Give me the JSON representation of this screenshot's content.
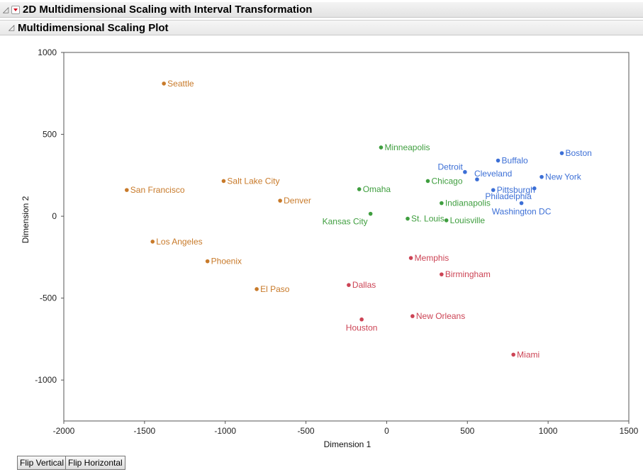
{
  "report": {
    "title": "2D Multidimensional Scaling with Interval Transformation"
  },
  "plot_section": {
    "title": "Multidimensional Scaling Plot"
  },
  "buttons": {
    "flip_vertical": "Flip Vertical",
    "flip_horizontal": "Flip Horizontal"
  },
  "colors": {
    "west": "#c87a2a",
    "central": "#3f9e3f",
    "south": "#cc4455",
    "east": "#3c6fd6"
  },
  "chart_data": {
    "type": "scatter",
    "xlabel": "Dimension 1",
    "ylabel": "Dimension 2",
    "xlim": [
      -2000,
      1500
    ],
    "ylim": [
      -1250,
      1000
    ],
    "x_ticks": [
      -2000,
      -1500,
      -1000,
      -500,
      0,
      500,
      1000,
      1500
    ],
    "y_ticks": [
      -1000,
      -500,
      0,
      500,
      1000
    ],
    "grid": false,
    "points": [
      {
        "name": "Seattle",
        "x": -1380,
        "y": 810,
        "group": "west"
      },
      {
        "name": "San Francisco",
        "x": -1610,
        "y": 160,
        "group": "west"
      },
      {
        "name": "Salt Lake City",
        "x": -1010,
        "y": 215,
        "group": "west"
      },
      {
        "name": "Denver",
        "x": -660,
        "y": 95,
        "group": "west"
      },
      {
        "name": "Los Angeles",
        "x": -1450,
        "y": -155,
        "group": "west"
      },
      {
        "name": "Phoenix",
        "x": -1110,
        "y": -275,
        "group": "west"
      },
      {
        "name": "El Paso",
        "x": -805,
        "y": -445,
        "group": "west"
      },
      {
        "name": "Minneapolis",
        "x": -35,
        "y": 420,
        "group": "central"
      },
      {
        "name": "Omaha",
        "x": -170,
        "y": 165,
        "group": "central"
      },
      {
        "name": "Chicago",
        "x": 255,
        "y": 215,
        "group": "central"
      },
      {
        "name": "Indianapolis",
        "x": 340,
        "y": 80,
        "group": "central"
      },
      {
        "name": "Kansas City",
        "x": -100,
        "y": 15,
        "group": "central",
        "label_pos": "left-below"
      },
      {
        "name": "St. Louis",
        "x": 130,
        "y": -15,
        "group": "central"
      },
      {
        "name": "Louisville",
        "x": 370,
        "y": -25,
        "group": "central"
      },
      {
        "name": "Memphis",
        "x": 150,
        "y": -255,
        "group": "south"
      },
      {
        "name": "Birmingham",
        "x": 340,
        "y": -355,
        "group": "south"
      },
      {
        "name": "Dallas",
        "x": -235,
        "y": -420,
        "group": "south"
      },
      {
        "name": "New Orleans",
        "x": 160,
        "y": -610,
        "group": "south"
      },
      {
        "name": "Houston",
        "x": -155,
        "y": -630,
        "group": "south",
        "label_pos": "below"
      },
      {
        "name": "Miami",
        "x": 785,
        "y": -845,
        "group": "south"
      },
      {
        "name": "Boston",
        "x": 1085,
        "y": 385,
        "group": "east"
      },
      {
        "name": "Buffalo",
        "x": 690,
        "y": 340,
        "group": "east"
      },
      {
        "name": "Detroit",
        "x": 485,
        "y": 270,
        "group": "east",
        "label_pos": "left-above"
      },
      {
        "name": "Cleveland",
        "x": 560,
        "y": 225,
        "group": "east",
        "label_pos": "above"
      },
      {
        "name": "New York",
        "x": 960,
        "y": 240,
        "group": "east"
      },
      {
        "name": "Philadelphia",
        "x": 915,
        "y": 170,
        "group": "east",
        "label_pos": "left-below"
      },
      {
        "name": "Pittsburgh",
        "x": 660,
        "y": 160,
        "group": "east"
      },
      {
        "name": "Washington DC",
        "x": 835,
        "y": 80,
        "group": "east",
        "label_pos": "below"
      }
    ]
  }
}
